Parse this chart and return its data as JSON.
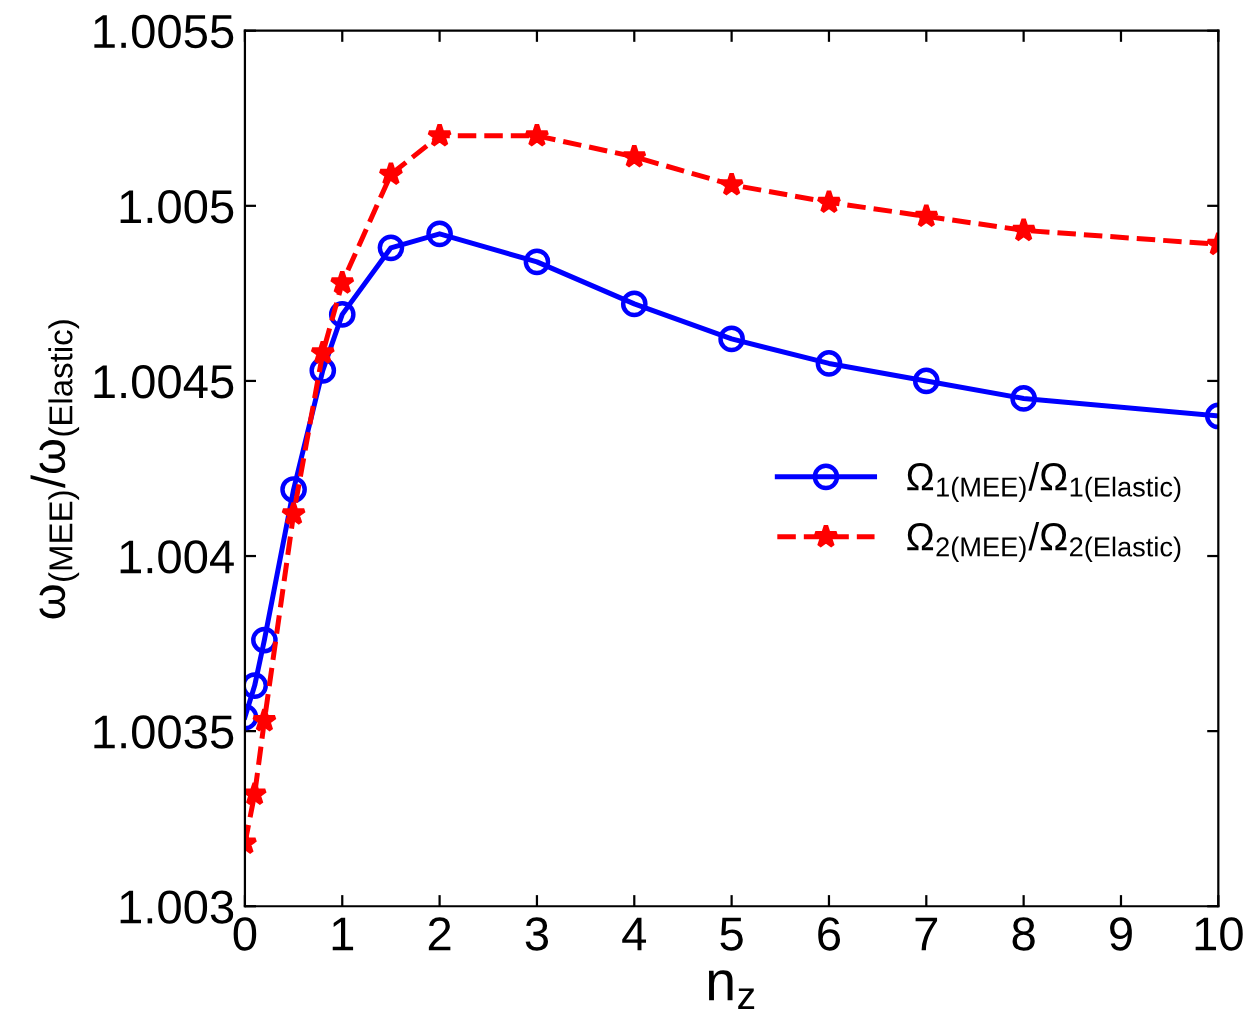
{
  "chart_data": {
    "type": "line",
    "xlabel": "n$_{z}$",
    "ylabel": "ω$_{(MEE)}$/ω$_{(Elastic)}$",
    "x": [
      0,
      0.1,
      0.2,
      0.5,
      0.8,
      1,
      1.5,
      2,
      3,
      4,
      5,
      6,
      7,
      8,
      10
    ],
    "series": [
      {
        "name": "Ω$_{1(MEE)}$/Ω$_{1(Elastic)}$",
        "color": "#0000ff",
        "marker": "circle",
        "line_style": "solid",
        "values": [
          1.00354,
          1.00363,
          1.00376,
          1.00419,
          1.00453,
          1.00469,
          1.00488,
          1.00492,
          1.00484,
          1.00472,
          1.00462,
          1.00455,
          1.0045,
          1.00445,
          1.0044
        ]
      },
      {
        "name": "Ω$_{2(MEE)}$/Ω$_{2(Elastic)}$",
        "color": "#ff0000",
        "marker": "star",
        "line_style": "dashed",
        "values": [
          1.00318,
          1.00332,
          1.00353,
          1.00412,
          1.00458,
          1.00478,
          1.00509,
          1.0052,
          1.0052,
          1.00514,
          1.00506,
          1.00501,
          1.00497,
          1.00493,
          1.00489
        ]
      }
    ],
    "xlim": [
      0,
      10
    ],
    "xticks": [
      0,
      1,
      2,
      3,
      4,
      5,
      6,
      7,
      8,
      9,
      10
    ],
    "ylim": [
      1.003,
      1.0055
    ],
    "yticks": [
      1.003,
      1.0035,
      1.004,
      1.0045,
      1.005,
      1.0055
    ],
    "grid": false,
    "legend": "right"
  }
}
